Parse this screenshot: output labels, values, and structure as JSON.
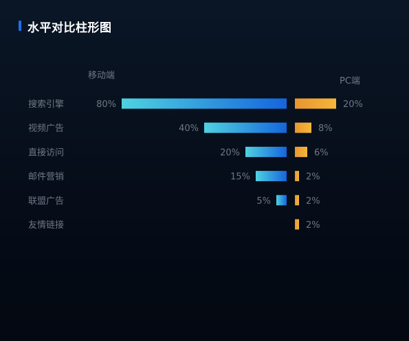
{
  "title": "水平对比柱形图",
  "chart_data": {
    "type": "bar",
    "orientation": "horizontal-mirrored",
    "categories": [
      "搜索引擎",
      "视频广告",
      "直接访问",
      "邮件营销",
      "联盟广告",
      "友情链接"
    ],
    "series": [
      {
        "name": "移动端",
        "values": [
          80,
          40,
          20,
          15,
          5,
          null
        ],
        "labels": [
          "80%",
          "40%",
          "20%",
          "15%",
          "5%",
          ""
        ],
        "side": "left"
      },
      {
        "name": "PC端",
        "values": [
          20,
          8,
          6,
          2,
          2,
          2
        ],
        "labels": [
          "20%",
          "8%",
          "6%",
          "2%",
          "2%",
          "2%"
        ],
        "side": "right"
      }
    ],
    "unit": "%",
    "grid": false
  },
  "colors": {
    "mobile_start": "#4fd2e0",
    "mobile_end": "#1565dd",
    "pc_start": "#e8962e",
    "pc_end": "#f5b63c",
    "accent": "#1d6fe8"
  }
}
